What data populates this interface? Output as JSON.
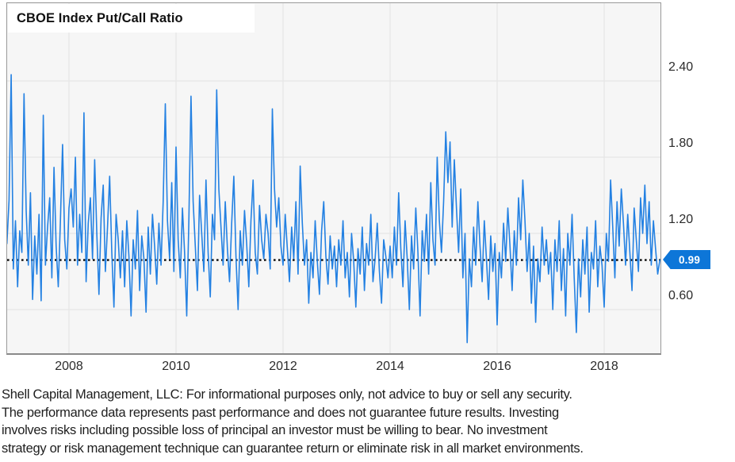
{
  "title": "CBOE Index Put/Call Ratio",
  "y_tick_labels": [
    "2.40",
    "1.80",
    "1.20",
    "0.60"
  ],
  "x_tick_labels": [
    "2008",
    "2010",
    "2012",
    "2014",
    "2016",
    "2018"
  ],
  "badge_label": "0.99",
  "disclaimer_lines": [
    "Shell Capital Management, LLC: For informational purposes only, not advice to buy or sell any security.",
    "The performance data represents past performance and does not guarantee future results. Investing",
    "involves risks including possible loss of principal an investor must be willing to bear. No investment",
    "strategy or risk management technique can guarantee return or eliminate risk in all market environments."
  ],
  "chart_data": {
    "type": "line",
    "title": "CBOE Index Put/Call Ratio",
    "series_name": "CBOE Index Put/Call Ratio",
    "x_ticks": [
      2008,
      2010,
      2012,
      2014,
      2016,
      2018
    ],
    "y_ticks": [
      2.4,
      1.8,
      1.2,
      0.6
    ],
    "xlim": [
      2006.83,
      2019.06
    ],
    "ylim": [
      0.25,
      3.01
    ],
    "grid": true,
    "legend": "none",
    "line_color": "#2481e2",
    "badge_color": "#0d76d8",
    "grid_color": "#e3e3e3",
    "plot_bg": "#f6f6f6",
    "last_value": 0.99,
    "last_value_line_style": "dotted-black",
    "x_start": 2006.84,
    "x_step": 0.04,
    "values": [
      1.12,
      1.46,
      2.45,
      0.92,
      1.3,
      0.78,
      1.22,
      1.05,
      2.3,
      1.38,
      0.95,
      1.52,
      0.68,
      1.18,
      0.88,
      1.35,
      0.67,
      2.13,
      0.95,
      1.25,
      1.48,
      0.85,
      1.72,
      1.1,
      0.78,
      1.3,
      1.9,
      1.15,
      0.92,
      1.4,
      1.55,
      1.25,
      1.8,
      0.95,
      1.35,
      1.05,
      2.15,
      0.82,
      1.28,
      1.48,
      1.0,
      1.78,
      1.2,
      0.72,
      1.32,
      1.58,
      0.9,
      1.25,
      1.65,
      1.05,
      0.62,
      1.35,
      1.15,
      0.85,
      1.22,
      0.78,
      1.3,
      1.02,
      0.55,
      1.15,
      0.92,
      1.38,
      0.75,
      1.18,
      1.0,
      0.58,
      1.25,
      0.88,
      1.35,
      1.1,
      0.8,
      1.28,
      0.95,
      1.45,
      2.22,
      1.3,
      1.0,
      1.6,
      0.9,
      1.88,
      1.15,
      0.85,
      1.4,
      1.05,
      0.55,
      1.3,
      2.28,
      1.45,
      1.1,
      0.75,
      1.5,
      1.2,
      0.9,
      1.62,
      1.05,
      0.7,
      1.35,
      1.15,
      2.33,
      1.55,
      1.25,
      0.95,
      1.45,
      1.08,
      0.82,
      1.28,
      1.65,
      1.02,
      0.6,
      1.22,
      0.95,
      1.38,
      1.12,
      0.78,
      1.3,
      1.62,
      1.05,
      0.88,
      1.42,
      1.15,
      1.0,
      1.35,
      1.2,
      0.92,
      2.18,
      1.55,
      1.25,
      1.48,
      1.1,
      0.95,
      1.35,
      1.08,
      0.82,
      1.25,
      1.0,
      1.45,
      0.88,
      1.73,
      1.28,
      0.95,
      1.15,
      0.65,
      1.05,
      0.85,
      1.3,
      0.98,
      0.72,
      1.22,
      1.45,
      1.02,
      0.8,
      1.18,
      0.92,
      1.1,
      0.78,
      1.15,
      0.95,
      1.3,
      0.85,
      1.05,
      0.7,
      1.2,
      0.98,
      0.62,
      1.08,
      0.88,
      1.25,
      0.75,
      1.12,
      0.95,
      1.35,
      0.82,
      1.0,
      1.28,
      0.9,
      0.65,
      1.15,
      1.02,
      0.85,
      1.1,
      0.85,
      1.25,
      0.95,
      1.52,
      1.08,
      0.78,
      1.3,
      1.0,
      0.6,
      1.18,
      0.92,
      1.4,
      1.05,
      0.55,
      1.22,
      0.98,
      1.35,
      0.88,
      1.6,
      1.15,
      0.95,
      1.8,
      1.3,
      1.05,
      1.45,
      2.0,
      1.6,
      1.92,
      1.25,
      1.78,
      1.4,
      1.05,
      1.55,
      0.85,
      1.2,
      0.34,
      1.0,
      0.78,
      1.25,
      0.95,
      1.45,
      1.1,
      0.82,
      1.3,
      1.0,
      0.68,
      1.18,
      0.9,
      1.12,
      0.48,
      1.05,
      0.85,
      1.28,
      0.98,
      1.4,
      1.1,
      0.75,
      1.22,
      0.95,
      1.48,
      1.15,
      1.62,
      1.3,
      0.9,
      1.2,
      0.65,
      1.1,
      0.5,
      1.0,
      0.82,
      1.25,
      0.95,
      1.15,
      0.88,
      1.05,
      0.6,
      1.15,
      0.9,
      1.3,
      0.75,
      1.08,
      0.55,
      1.2,
      0.95,
      1.35,
      0.85,
      0.42,
      1.0,
      0.7,
      1.15,
      0.88,
      1.25,
      0.58,
      1.05,
      0.92,
      1.3,
      0.78,
      1.1,
      0.95,
      0.62,
      1.2,
      0.98,
      1.62,
      1.25,
      0.85,
      1.45,
      1.1,
      1.55,
      1.28,
      0.95,
      1.35,
      1.05,
      0.75,
      1.4,
      1.15,
      0.9,
      1.48,
      1.2,
      1.58,
      1.12,
      1.45,
      0.95,
      1.3,
      1.08,
      0.88,
      0.99
    ]
  }
}
